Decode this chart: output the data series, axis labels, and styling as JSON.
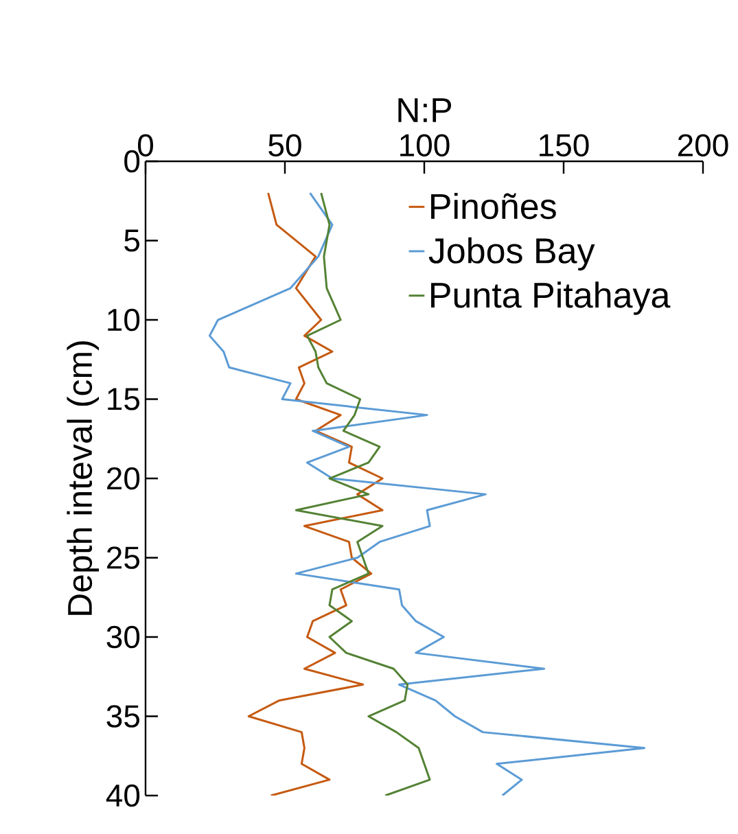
{
  "chart_data": {
    "type": "line",
    "xlabel": "N:P",
    "ylabel": "Depth inteval (cm)",
    "xlim": [
      0,
      200
    ],
    "xticks": [
      0,
      50,
      100,
      150,
      200
    ],
    "ylim": [
      40,
      0
    ],
    "yticks": [
      0,
      5,
      10,
      15,
      20,
      25,
      30,
      35,
      40
    ],
    "legend": "top right",
    "line_style": "solid",
    "series": [
      {
        "name": "Pinoñes",
        "color": "#c55a11",
        "x": [
          44,
          47,
          61,
          54,
          63,
          57,
          67,
          55,
          57,
          54,
          70,
          61,
          74,
          73,
          85,
          76,
          85,
          57,
          73,
          74,
          81,
          70,
          72,
          60,
          58,
          68,
          57,
          78,
          48,
          37,
          56,
          57,
          56,
          66,
          45
        ],
        "values": [
          2,
          4,
          6,
          8,
          10,
          11,
          12,
          13,
          14,
          15,
          16,
          17,
          18,
          19,
          20,
          21,
          22,
          23,
          24,
          25,
          26,
          27,
          28,
          29,
          30,
          31,
          32,
          33,
          34,
          35,
          36,
          37,
          38,
          39,
          40
        ]
      },
      {
        "name": "Jobos Bay",
        "color": "#5b9bd5",
        "x": [
          59,
          67,
          62,
          52,
          26,
          23,
          28,
          30,
          52,
          49,
          101,
          60,
          73,
          58,
          67,
          122,
          101,
          102,
          84,
          76,
          54,
          91,
          92,
          97,
          107,
          97,
          143,
          91,
          104,
          111,
          121,
          179,
          126,
          135,
          128
        ],
        "values": [
          2,
          4,
          6,
          8,
          10,
          11,
          12,
          13,
          14,
          15,
          16,
          17,
          18,
          19,
          20,
          21,
          22,
          23,
          24,
          25,
          26,
          27,
          28,
          29,
          30,
          31,
          32,
          33,
          34,
          35,
          36,
          37,
          38,
          39,
          40
        ]
      },
      {
        "name": "Punta Pitahaya",
        "color": "#548235",
        "x": [
          63,
          66,
          64,
          65,
          70,
          58,
          61,
          62,
          65,
          77,
          75,
          71,
          84,
          80,
          66,
          80,
          54,
          85,
          76,
          78,
          80,
          67,
          66,
          74,
          66,
          72,
          89,
          94,
          93,
          80,
          90,
          98,
          100,
          102,
          86
        ],
        "values": [
          2,
          4,
          6,
          8,
          10,
          11,
          12,
          13,
          14,
          15,
          16,
          17,
          18,
          19,
          20,
          21,
          22,
          23,
          24,
          25,
          26,
          27,
          28,
          29,
          30,
          31,
          32,
          33,
          34,
          35,
          36,
          37,
          38,
          39,
          40
        ]
      }
    ]
  }
}
